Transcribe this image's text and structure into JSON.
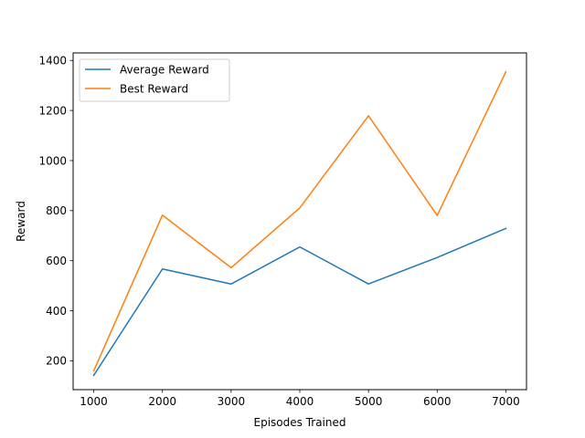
{
  "chart_data": {
    "type": "line",
    "title": "",
    "xlabel": "Episodes Trained",
    "ylabel": "Reward",
    "x": [
      1000,
      2000,
      3000,
      4000,
      5000,
      6000,
      7000
    ],
    "xlim": [
      700,
      7300
    ],
    "ylim": [
      85,
      1430
    ],
    "xticks": [
      1000,
      2000,
      3000,
      4000,
      5000,
      6000,
      7000
    ],
    "yticks": [
      200,
      400,
      600,
      800,
      1000,
      1200,
      1400
    ],
    "grid": false,
    "legend_position": "upper-left",
    "series": [
      {
        "name": "Average Reward",
        "color": "#1f77b4",
        "values": [
          142,
          567,
          507,
          655,
          507,
          613,
          729
        ]
      },
      {
        "name": "Best Reward",
        "color": "#ff7f0e",
        "values": [
          160,
          782,
          572,
          811,
          1179,
          781,
          1355
        ]
      }
    ]
  }
}
